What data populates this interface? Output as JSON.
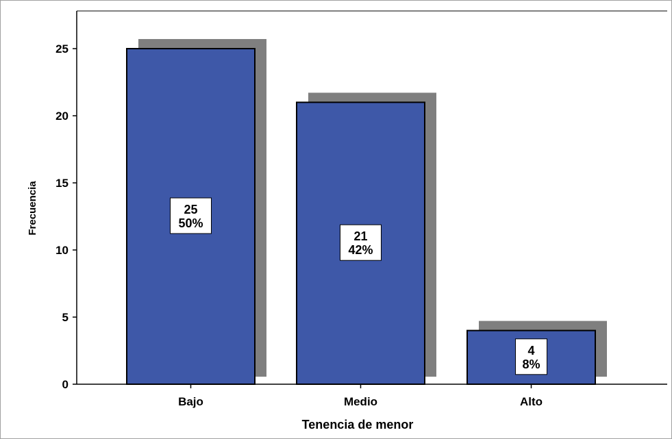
{
  "chart_data": {
    "type": "bar",
    "categories": [
      "Bajo",
      "Medio",
      "Alto"
    ],
    "values": [
      25,
      21,
      4
    ],
    "percentages": [
      "50%",
      "42%",
      "8%"
    ],
    "data_labels": [
      {
        "count": "25",
        "percent": "50%"
      },
      {
        "count": "21",
        "percent": "42%"
      },
      {
        "count": "4",
        "percent": "8%"
      }
    ],
    "title": "",
    "xlabel": "Tenencia de menor",
    "ylabel": "Frecuencia",
    "ylim": [
      0,
      27.5
    ],
    "yticks": [
      "0",
      "5",
      "10",
      "15",
      "20",
      "25"
    ],
    "bar_color": "#3e58a8",
    "shadow_color": "#7f7f7f",
    "grid": false,
    "legend": "none"
  }
}
